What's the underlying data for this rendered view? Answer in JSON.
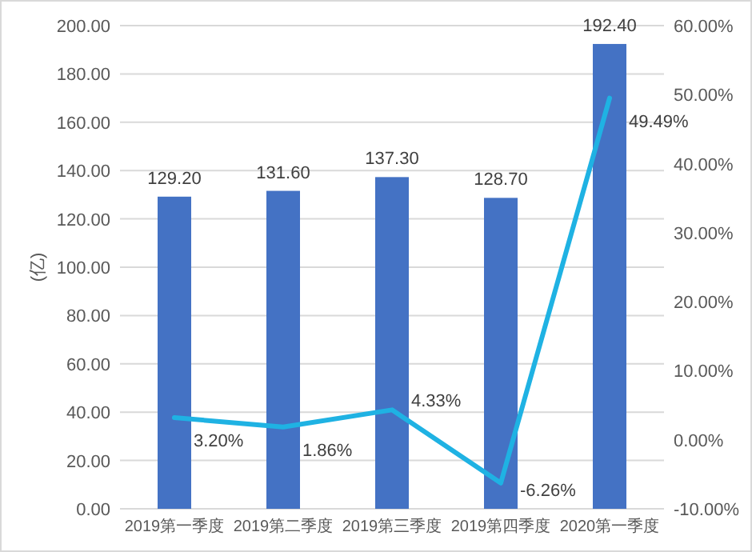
{
  "chart_data": {
    "type": "bar",
    "ylabel": "(亿)",
    "categories": [
      "2019第一季度",
      "2019第二季度",
      "2019第三季度",
      "2019第四季度",
      "2020第一季度"
    ],
    "series": [
      {
        "color": "#4472c4",
        "values": [
          129.2,
          131.6,
          137.3,
          128.7,
          192.4
        ],
        "value_labels": [
          "129.20",
          "131.60",
          "137.30",
          "128.70",
          "192.40"
        ]
      },
      {
        "type": "line",
        "axis": "y2",
        "color": "#1fb2e3",
        "values": [
          3.2,
          1.86,
          4.33,
          -6.26,
          49.49
        ],
        "value_labels": [
          "3.20%",
          "1.86%",
          "4.33%",
          "-6.26%",
          "49.49%"
        ]
      }
    ],
    "ylim": [
      0,
      200
    ],
    "yticks": [
      {
        "value": 0,
        "label": "0.00"
      },
      {
        "value": 20,
        "label": "20.00"
      },
      {
        "value": 40,
        "label": "40.00"
      },
      {
        "value": 60,
        "label": "60.00"
      },
      {
        "value": 80,
        "label": "80.00"
      },
      {
        "value": 100,
        "label": "100.00"
      },
      {
        "value": 120,
        "label": "120.00"
      },
      {
        "value": 140,
        "label": "140.00"
      },
      {
        "value": 160,
        "label": "160.00"
      },
      {
        "value": 180,
        "label": "180.00"
      },
      {
        "value": 200,
        "label": "200.00"
      }
    ],
    "y2lim": [
      -10,
      60
    ],
    "y2ticks": [
      {
        "value": -10,
        "label": "-10.00%"
      },
      {
        "value": 0,
        "label": "0.00%"
      },
      {
        "value": 10,
        "label": "10.00%"
      },
      {
        "value": 20,
        "label": "20.00%"
      },
      {
        "value": 30,
        "label": "30.00%"
      },
      {
        "value": 40,
        "label": "40.00%"
      },
      {
        "value": 50,
        "label": "50.00%"
      },
      {
        "value": 60,
        "label": "60.00%"
      }
    ],
    "grid": "y"
  }
}
